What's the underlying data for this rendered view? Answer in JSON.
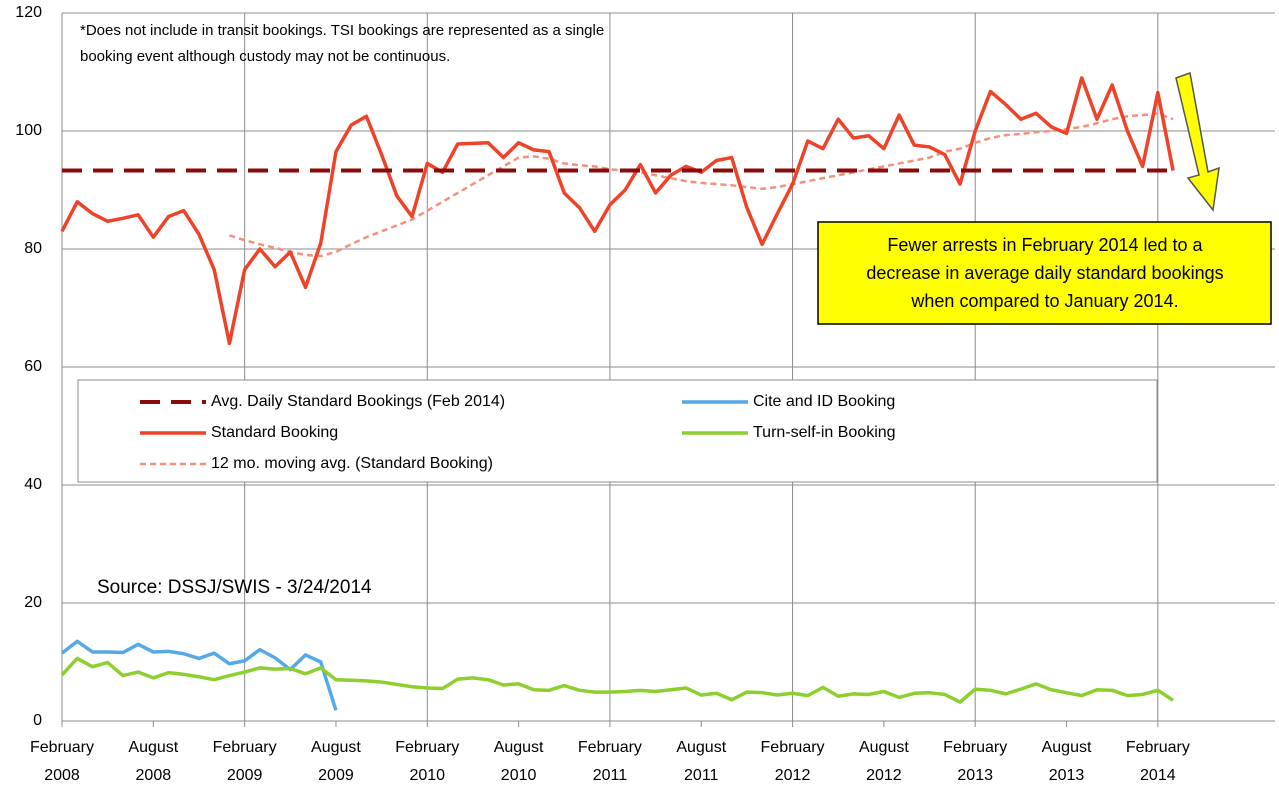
{
  "chart_data": {
    "type": "line",
    "note": [
      "*Does not include in transit bookings. TSI bookings are represented as a single",
      "booking event although custody may not be continuous."
    ],
    "source": "Source: DSSJ/SWIS - 3/24/2014",
    "annotation": [
      "Fewer arrests in February 2014 led to a",
      "decrease in average daily standard bookings",
      "when compared to January 2014."
    ],
    "categories": [
      "February 2008",
      null,
      null,
      null,
      null,
      null,
      "August 2008",
      null,
      null,
      null,
      null,
      null,
      "February 2009",
      null,
      null,
      null,
      null,
      null,
      "August 2009",
      null,
      null,
      null,
      null,
      null,
      "February 2010",
      null,
      null,
      null,
      null,
      null,
      "August 2010",
      null,
      null,
      null,
      null,
      null,
      "February 2011",
      null,
      null,
      null,
      null,
      null,
      "August 2011",
      null,
      null,
      null,
      null,
      null,
      "February 2012",
      null,
      null,
      null,
      null,
      null,
      "August 2012",
      null,
      null,
      null,
      null,
      null,
      "February 2013",
      null,
      null,
      null,
      null,
      null,
      "August 2013",
      null,
      null,
      null,
      null,
      null,
      "February 2014",
      null
    ],
    "ylim": [
      0,
      120
    ],
    "yticks": [
      0,
      20,
      40,
      60,
      80,
      100,
      120
    ],
    "grid": true,
    "series": [
      {
        "name": "Avg. Daily Standard Bookings (Feb 2014)",
        "color": "#8b0a0a",
        "dash": "long",
        "values": [
          93.3,
          93.3,
          93.3,
          93.3,
          93.3,
          93.3,
          93.3,
          93.3,
          93.3,
          93.3,
          93.3,
          93.3,
          93.3,
          93.3,
          93.3,
          93.3,
          93.3,
          93.3,
          93.3,
          93.3,
          93.3,
          93.3,
          93.3,
          93.3,
          93.3,
          93.3,
          93.3,
          93.3,
          93.3,
          93.3,
          93.3,
          93.3,
          93.3,
          93.3,
          93.3,
          93.3,
          93.3,
          93.3,
          93.3,
          93.3,
          93.3,
          93.3,
          93.3,
          93.3,
          93.3,
          93.3,
          93.3,
          93.3,
          93.3,
          93.3,
          93.3,
          93.3,
          93.3,
          93.3,
          93.3,
          93.3,
          93.3,
          93.3,
          93.3,
          93.3,
          93.3,
          93.3,
          93.3,
          93.3,
          93.3,
          93.3,
          93.3,
          93.3,
          93.3,
          93.3,
          93.3,
          93.3,
          93.3,
          93.3
        ]
      },
      {
        "name": "Cite and ID Booking",
        "color": "#56a9e8",
        "dash": "solid",
        "values": [
          11.5,
          13.5,
          11.7,
          11.7,
          11.6,
          13,
          11.7,
          11.8,
          11.4,
          10.6,
          11.5,
          9.7,
          10.2,
          12.1,
          10.7,
          8.7,
          11.2,
          10,
          1.8,
          null,
          null,
          null,
          null,
          null,
          null,
          null,
          null,
          null,
          null,
          null,
          null,
          null,
          null,
          null,
          null,
          null,
          null,
          null,
          null,
          null,
          null,
          null,
          null,
          null,
          null,
          null,
          null,
          null,
          null,
          null,
          null,
          null,
          null,
          null,
          null,
          null,
          null,
          null,
          null,
          null,
          null,
          null,
          null,
          null,
          null,
          null,
          null,
          null,
          null,
          null,
          null,
          null,
          null,
          null
        ]
      },
      {
        "name": "Standard Booking",
        "color": "#ee4329",
        "dash": "solid",
        "values": [
          83,
          88,
          86,
          84.7,
          85.2,
          85.8,
          82,
          85.5,
          86.5,
          82.5,
          76.5,
          64,
          76.5,
          80,
          77,
          79.5,
          73.5,
          81,
          96.5,
          101,
          102.5,
          96,
          89,
          85.5,
          94.5,
          93,
          97.8,
          97.9,
          98,
          95.5,
          98,
          96.8,
          96.5,
          89.5,
          87,
          83,
          87.5,
          90,
          94.3,
          89.5,
          92.5,
          94,
          93,
          95,
          95.5,
          87,
          80.8,
          86,
          91,
          98.3,
          97,
          102,
          98.8,
          99.2,
          97,
          102.7,
          97.6,
          97.3,
          96,
          91,
          100,
          106.7,
          104.5,
          102,
          103,
          100.7,
          99.6,
          109,
          102,
          107.8,
          100,
          94,
          106.5,
          93.3
        ]
      },
      {
        "name": "Turn-self-in Booking",
        "color": "#8ccf2e",
        "dash": "solid",
        "values": [
          7.8,
          10.6,
          9.2,
          9.9,
          7.7,
          8.3,
          7.3,
          8.2,
          7.9,
          7.5,
          7,
          7.7,
          8.3,
          9,
          8.8,
          8.9,
          8,
          9,
          7,
          6.9,
          6.8,
          6.6,
          6.2,
          5.8,
          5.6,
          5.5,
          7.1,
          7.3,
          7,
          6.1,
          6.3,
          5.3,
          5.2,
          6,
          5.2,
          4.9,
          4.9,
          5,
          5.2,
          5,
          5.3,
          5.6,
          4.4,
          4.7,
          3.6,
          4.9,
          4.8,
          4.4,
          4.7,
          4.3,
          5.7,
          4.2,
          4.6,
          4.5,
          5,
          4,
          4.7,
          4.8,
          4.5,
          3.2,
          5.4,
          5.2,
          4.6,
          5.4,
          6.3,
          5.3,
          4.8,
          4.3,
          5.3,
          5.2,
          4.3,
          4.5,
          5.2,
          3.5
        ]
      },
      {
        "name": "12 mo. moving avg. (Standard Booking)",
        "color": "#f4907c",
        "dash": "short",
        "values": [
          null,
          null,
          null,
          null,
          null,
          null,
          null,
          null,
          null,
          null,
          null,
          82.3,
          81.5,
          80.8,
          80.2,
          79.5,
          79,
          78.8,
          79.5,
          80.8,
          82,
          83,
          84,
          85,
          86.5,
          88,
          89.5,
          91,
          92.5,
          94,
          95.5,
          95.7,
          95.3,
          94.5,
          94.2,
          94,
          93.5,
          93.3,
          93,
          92.5,
          92,
          91.5,
          91.2,
          91,
          90.8,
          90.5,
          90.2,
          90.5,
          91,
          91.5,
          92,
          92.5,
          93,
          93.5,
          94,
          94.5,
          95,
          95.5,
          96.5,
          97,
          98,
          98.8,
          99.3,
          99.5,
          99.8,
          100,
          100.3,
          100.7,
          101.3,
          102,
          102.5,
          102.7,
          103,
          102
        ]
      }
    ]
  }
}
